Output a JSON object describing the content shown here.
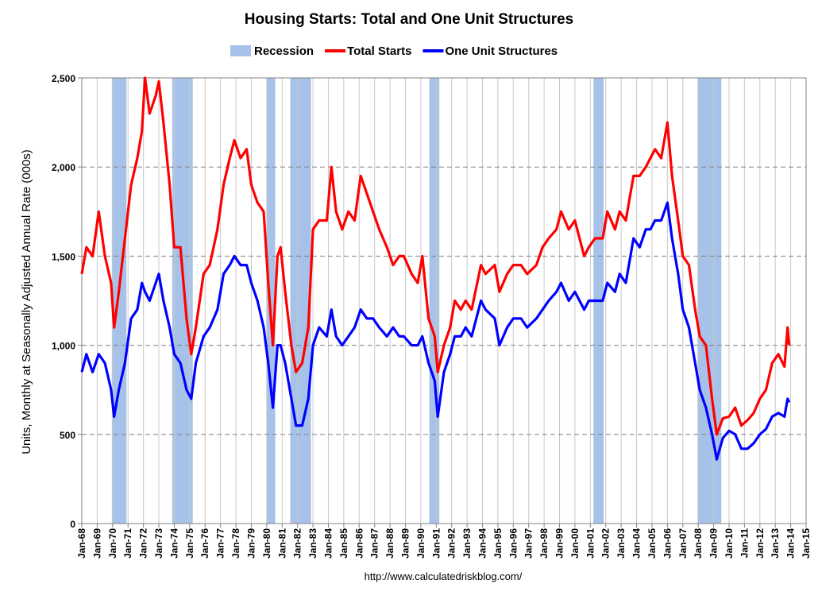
{
  "chart_data": {
    "type": "line",
    "title": "Housing Starts: Total and One Unit Structures",
    "y_label": "Units, Monthly at Seasonally Adjusted Annual Rate (000s)",
    "source": "http://www.calculatedriskblog.com/",
    "recession": {
      "name": "Recession",
      "color": "#a7c2e8",
      "ranges": [
        [
          1969.95,
          1970.9
        ],
        [
          1973.87,
          1975.2
        ],
        [
          1980.0,
          1980.55
        ],
        [
          1981.53,
          1982.87
        ],
        [
          1990.55,
          1991.2
        ],
        [
          2001.2,
          2001.87
        ],
        [
          2007.95,
          2009.5
        ]
      ]
    },
    "x": [
      1968.0,
      1968.3,
      1968.7,
      1969.1,
      1969.5,
      1969.9,
      1970.1,
      1970.4,
      1970.8,
      1971.2,
      1971.6,
      1971.9,
      1972.1,
      1972.4,
      1972.8,
      1973.0,
      1973.3,
      1973.7,
      1974.0,
      1974.4,
      1974.8,
      1975.1,
      1975.4,
      1975.9,
      1976.3,
      1976.8,
      1977.2,
      1977.6,
      1977.9,
      1978.3,
      1978.7,
      1979.0,
      1979.4,
      1979.8,
      1980.1,
      1980.4,
      1980.7,
      1980.9,
      1981.2,
      1981.6,
      1981.9,
      1982.3,
      1982.7,
      1983.0,
      1983.4,
      1983.9,
      1984.2,
      1984.5,
      1984.9,
      1985.3,
      1985.7,
      1986.1,
      1986.5,
      1986.9,
      1987.3,
      1987.8,
      1988.2,
      1988.6,
      1988.9,
      1989.4,
      1989.8,
      1990.1,
      1990.5,
      1990.9,
      1991.1,
      1991.5,
      1991.9,
      1992.2,
      1992.6,
      1992.9,
      1993.3,
      1993.9,
      1994.2,
      1994.8,
      1995.1,
      1995.6,
      1996.0,
      1996.5,
      1996.9,
      1997.5,
      1997.9,
      1998.3,
      1998.8,
      1999.1,
      1999.6,
      2000.0,
      2000.6,
      2000.9,
      2001.3,
      2001.8,
      2002.1,
      2002.6,
      2002.9,
      2003.3,
      2003.8,
      2004.2,
      2004.6,
      2004.9,
      2005.2,
      2005.6,
      2006.0,
      2006.3,
      2006.7,
      2007.0,
      2007.4,
      2007.8,
      2008.1,
      2008.5,
      2008.9,
      2009.2,
      2009.6,
      2010.0,
      2010.4,
      2010.8,
      2011.2,
      2011.6,
      2012.0,
      2012.4,
      2012.8,
      2013.2,
      2013.6,
      2013.8,
      2013.9
    ],
    "series": [
      {
        "name": "Total Starts",
        "color": "#ff0000",
        "values": [
          1400,
          1550,
          1500,
          1750,
          1500,
          1350,
          1100,
          1300,
          1600,
          1900,
          2050,
          2200,
          2500,
          2300,
          2400,
          2480,
          2250,
          1900,
          1550,
          1550,
          1150,
          950,
          1100,
          1400,
          1450,
          1650,
          1900,
          2050,
          2150,
          2050,
          2100,
          1900,
          1800,
          1750,
          1350,
          1000,
          1500,
          1550,
          1300,
          1000,
          850,
          900,
          1100,
          1650,
          1700,
          1700,
          2000,
          1750,
          1650,
          1750,
          1700,
          1950,
          1850,
          1750,
          1650,
          1550,
          1450,
          1500,
          1500,
          1400,
          1350,
          1500,
          1150,
          1050,
          850,
          1000,
          1100,
          1250,
          1200,
          1250,
          1200,
          1450,
          1400,
          1450,
          1300,
          1400,
          1450,
          1450,
          1400,
          1450,
          1550,
          1600,
          1650,
          1750,
          1650,
          1700,
          1500,
          1550,
          1600,
          1600,
          1750,
          1650,
          1750,
          1700,
          1950,
          1950,
          2000,
          2050,
          2100,
          2050,
          2250,
          1950,
          1700,
          1500,
          1450,
          1200,
          1050,
          1000,
          700,
          500,
          590,
          600,
          650,
          550,
          580,
          620,
          700,
          750,
          900,
          950,
          880,
          1100,
          1000
        ]
      },
      {
        "name": "One Unit Structures",
        "color": "#0000ff",
        "values": [
          850,
          950,
          850,
          950,
          900,
          750,
          600,
          750,
          900,
          1150,
          1200,
          1350,
          1300,
          1250,
          1350,
          1400,
          1250,
          1100,
          950,
          900,
          750,
          700,
          900,
          1050,
          1100,
          1200,
          1400,
          1450,
          1500,
          1450,
          1450,
          1350,
          1250,
          1100,
          900,
          650,
          1000,
          1000,
          900,
          700,
          550,
          550,
          700,
          1000,
          1100,
          1050,
          1200,
          1050,
          1000,
          1050,
          1100,
          1200,
          1150,
          1150,
          1100,
          1050,
          1100,
          1050,
          1050,
          1000,
          1000,
          1050,
          900,
          800,
          600,
          850,
          950,
          1050,
          1050,
          1100,
          1050,
          1250,
          1200,
          1150,
          1000,
          1100,
          1150,
          1150,
          1100,
          1150,
          1200,
          1250,
          1300,
          1350,
          1250,
          1300,
          1200,
          1250,
          1250,
          1250,
          1350,
          1300,
          1400,
          1350,
          1600,
          1550,
          1650,
          1650,
          1700,
          1700,
          1800,
          1600,
          1400,
          1200,
          1100,
          900,
          750,
          650,
          500,
          360,
          480,
          520,
          500,
          420,
          420,
          450,
          500,
          530,
          600,
          620,
          600,
          700,
          680
        ]
      }
    ],
    "xlim": [
      1968,
      2015
    ],
    "xticks": [
      {
        "value": 1968,
        "label": "Jan-68"
      },
      {
        "value": 1969,
        "label": "Jan-69"
      },
      {
        "value": 1970,
        "label": "Jan-70"
      },
      {
        "value": 1971,
        "label": "Jan-71"
      },
      {
        "value": 1972,
        "label": "Jan-72"
      },
      {
        "value": 1973,
        "label": "Jan-73"
      },
      {
        "value": 1974,
        "label": "Jan-74"
      },
      {
        "value": 1975,
        "label": "Jan-75"
      },
      {
        "value": 1976,
        "label": "Jan-76"
      },
      {
        "value": 1977,
        "label": "Jan-77"
      },
      {
        "value": 1978,
        "label": "Jan-78"
      },
      {
        "value": 1979,
        "label": "Jan-79"
      },
      {
        "value": 1980,
        "label": "Jan-80"
      },
      {
        "value": 1981,
        "label": "Jan-81"
      },
      {
        "value": 1982,
        "label": "Jan-82"
      },
      {
        "value": 1983,
        "label": "Jan-83"
      },
      {
        "value": 1984,
        "label": "Jan-84"
      },
      {
        "value": 1985,
        "label": "Jan-85"
      },
      {
        "value": 1986,
        "label": "Jan-86"
      },
      {
        "value": 1987,
        "label": "Jan-87"
      },
      {
        "value": 1988,
        "label": "Jan-88"
      },
      {
        "value": 1989,
        "label": "Jan-89"
      },
      {
        "value": 1990,
        "label": "Jan-90"
      },
      {
        "value": 1991,
        "label": "Jan-91"
      },
      {
        "value": 1992,
        "label": "Jan-92"
      },
      {
        "value": 1993,
        "label": "Jan-93"
      },
      {
        "value": 1994,
        "label": "Jan-94"
      },
      {
        "value": 1995,
        "label": "Jan-95"
      },
      {
        "value": 1996,
        "label": "Jan-96"
      },
      {
        "value": 1997,
        "label": "Jan-97"
      },
      {
        "value": 1998,
        "label": "Jan-98"
      },
      {
        "value": 1999,
        "label": "Jan-99"
      },
      {
        "value": 2000,
        "label": "Jan-00"
      },
      {
        "value": 2001,
        "label": "Jan-01"
      },
      {
        "value": 2002,
        "label": "Jan-02"
      },
      {
        "value": 2003,
        "label": "Jan-03"
      },
      {
        "value": 2004,
        "label": "Jan-04"
      },
      {
        "value": 2005,
        "label": "Jan-05"
      },
      {
        "value": 2006,
        "label": "Jan-06"
      },
      {
        "value": 2007,
        "label": "Jan-07"
      },
      {
        "value": 2008,
        "label": "Jan-08"
      },
      {
        "value": 2009,
        "label": "Jan-09"
      },
      {
        "value": 2010,
        "label": "Jan-10"
      },
      {
        "value": 2011,
        "label": "Jan-11"
      },
      {
        "value": 2012,
        "label": "Jan-12"
      },
      {
        "value": 2013,
        "label": "Jan-13"
      },
      {
        "value": 2014,
        "label": "Jan-14"
      },
      {
        "value": 2015,
        "label": "Jan-15"
      }
    ],
    "ylim": [
      0,
      2500
    ],
    "yticks": [
      0,
      500,
      {
        "value": 1000,
        "label": "1,000"
      },
      {
        "value": 1500,
        "label": "1,500"
      },
      {
        "value": 2000,
        "label": "2,000"
      },
      {
        "value": 2500,
        "label": "2,500"
      }
    ],
    "grid": true,
    "legend": "top"
  }
}
